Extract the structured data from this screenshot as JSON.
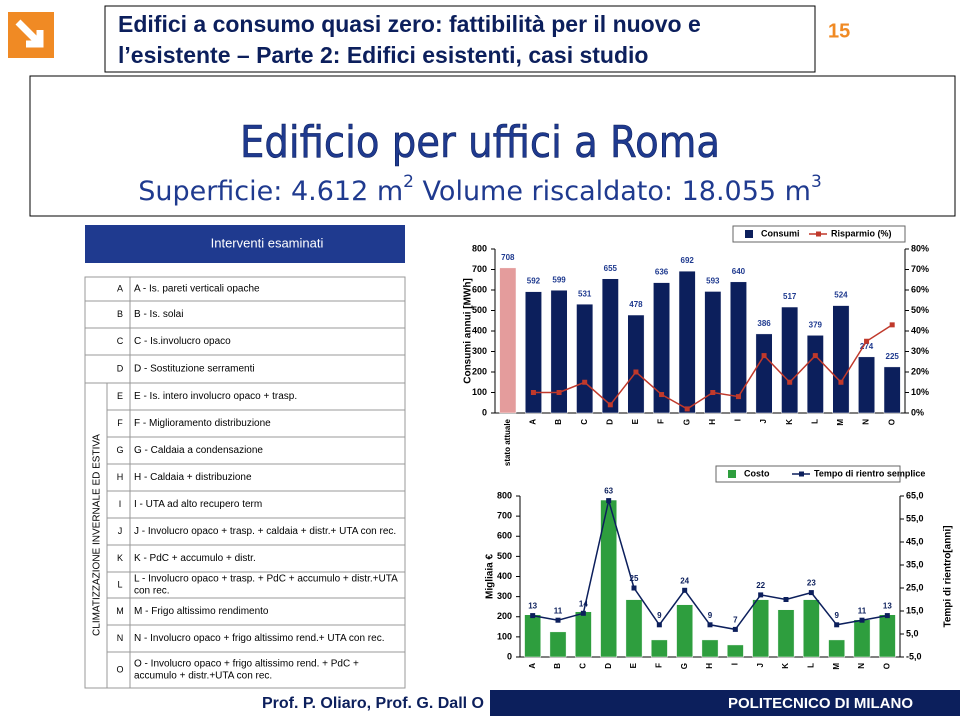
{
  "header": {
    "title_lines": [
      "Edifici a consumo quasi zero: fattibilità per il nuovo e",
      "l’esistente – Parte 2: Edifici esistenti, casi studio"
    ],
    "page": "15"
  },
  "main": {
    "title": "Edificio per uffici a Roma",
    "subtitle_parts": [
      "Superficie: 4.612 m",
      "2",
      " Volume riscaldato: 18.055 m",
      "3"
    ]
  },
  "table": {
    "header": "Interventi esaminati",
    "side_label": "CLIMATIZZAZIONE INVERNALE ED ESTIVA",
    "rows": [
      [
        "A",
        [
          "A - Is. pareti verticali opache"
        ]
      ],
      [
        "B",
        [
          "B - Is. solai"
        ]
      ],
      [
        "C",
        [
          "C - Is.involucro opaco"
        ]
      ],
      [
        "D",
        [
          "D - Sostituzione serramenti"
        ]
      ],
      [
        "E",
        [
          "E - Is. intero involucro opaco + trasp."
        ]
      ],
      [
        "F",
        [
          "F - Miglioramento distribuzione"
        ]
      ],
      [
        "G",
        [
          "G - Caldaia a condensazione"
        ]
      ],
      [
        "H",
        [
          "H - Caldaia + distribuzione"
        ]
      ],
      [
        "I",
        [
          "I - UTA ad alto recupero term"
        ]
      ],
      [
        "J",
        [
          "J - Involucro opaco + trasp. + caldaia + distr.+ UTA con rec."
        ]
      ],
      [
        "K",
        [
          "K - PdC + accumulo + distr."
        ]
      ],
      [
        "L",
        [
          "L - Involucro opaco + trasp. + PdC + accumulo + distr.+UTA",
          "con rec."
        ]
      ],
      [
        "M",
        [
          "M - Frigo altissimo rendimento"
        ]
      ],
      [
        "N",
        [
          "N - Involucro opaco + frigo altissimo rend.+ UTA con rec."
        ]
      ],
      [
        "O",
        [
          "O - Involucro opaco + frigo altissimo rend. + PdC +",
          "accumulo + distr.+UTA con rec."
        ]
      ]
    ]
  },
  "chart_data": [
    {
      "type": "combo",
      "y_label": "Consumi annui [MWh]",
      "categories": [
        "stato attuale",
        "A",
        "B",
        "C",
        "D",
        "E",
        "F",
        "G",
        "H",
        "I",
        "J",
        "K",
        "L",
        "M",
        "N",
        "O"
      ],
      "series": [
        {
          "name": "Consumi",
          "type": "bar",
          "color": "#0c1f5c",
          "colors": [
            "#e49c9c",
            "#0c1f5c",
            "#0c1f5c",
            "#0c1f5c",
            "#0c1f5c",
            "#0c1f5c",
            "#0c1f5c",
            "#0c1f5c",
            "#0c1f5c",
            "#0c1f5c",
            "#0c1f5c",
            "#0c1f5c",
            "#0c1f5c",
            "#0c1f5c",
            "#0c1f5c",
            "#0c1f5c"
          ],
          "values": [
            708,
            592,
            599,
            531,
            655,
            478,
            636,
            692,
            593,
            640,
            386,
            517,
            379,
            524,
            274,
            225
          ]
        },
        {
          "name": "Risparmio (%)",
          "type": "line",
          "axis": "y2",
          "color": "#c0392b",
          "values": [
            null,
            10,
            10,
            15,
            4,
            20,
            9,
            2,
            10,
            8,
            28,
            15,
            28,
            15,
            35,
            43
          ]
        }
      ],
      "ylim": [
        0,
        800
      ],
      "yticks": [
        0,
        100,
        200,
        300,
        400,
        500,
        600,
        700,
        800
      ],
      "y2lim": [
        0,
        80
      ],
      "y2ticks": [
        {
          "value": 0,
          "label": "0%"
        },
        {
          "value": 10,
          "label": "10%"
        },
        {
          "value": 20,
          "label": "20%"
        },
        {
          "value": 30,
          "label": "30%"
        },
        {
          "value": 40,
          "label": "40%"
        },
        {
          "value": 50,
          "label": "50%"
        },
        {
          "value": 60,
          "label": "60%"
        },
        {
          "value": 70,
          "label": "70%"
        },
        {
          "value": 80,
          "label": "80%"
        }
      ],
      "grid": false
    },
    {
      "type": "combo",
      "y_label": "Migliaia €",
      "y2_label": "Tempi di rientro[anni]",
      "categories": [
        "A",
        "B",
        "C",
        "D",
        "E",
        "F",
        "G",
        "H",
        "I",
        "J",
        "K",
        "L",
        "M",
        "N",
        "O"
      ],
      "series": [
        {
          "name": "Costo",
          "type": "bar",
          "color": "#2e9e3e",
          "values": [
            210,
            125,
            225,
            780,
            285,
            85,
            260,
            85,
            60,
            285,
            235,
            285,
            85,
            185,
            210
          ]
        },
        {
          "name": "Tempo di rientro semplice",
          "type": "line",
          "axis": "y2",
          "color": "#0c1f5c",
          "values": [
            13,
            11,
            14,
            63,
            25,
            9,
            24,
            9,
            7,
            22,
            20,
            23,
            9,
            11,
            13
          ],
          "value_labels": [
            "13",
            "11",
            "14",
            "63",
            "25",
            "9",
            "24",
            "9",
            "7",
            "22",
            null,
            "23",
            "9",
            "11",
            "13"
          ]
        }
      ],
      "ylim": [
        0,
        800
      ],
      "yticks": [
        0,
        100,
        200,
        300,
        400,
        500,
        600,
        700,
        800
      ],
      "y2lim": [
        -5,
        65
      ],
      "y2ticks": [
        {
          "value": -5,
          "label": "-5,0"
        },
        {
          "value": 5,
          "label": "5,0"
        },
        {
          "value": 15,
          "label": "15,0"
        },
        {
          "value": 25,
          "label": "25,0"
        },
        {
          "value": 35,
          "label": "35,0"
        },
        {
          "value": 45,
          "label": "45,0"
        },
        {
          "value": 55,
          "label": "55,0"
        },
        {
          "value": 65,
          "label": "65,0"
        }
      ],
      "grid": false
    }
  ],
  "footer": {
    "authors": "Prof. P. Oliaro, Prof. G. Dall O",
    "institution": "POLITECNICO DI MILANO"
  }
}
